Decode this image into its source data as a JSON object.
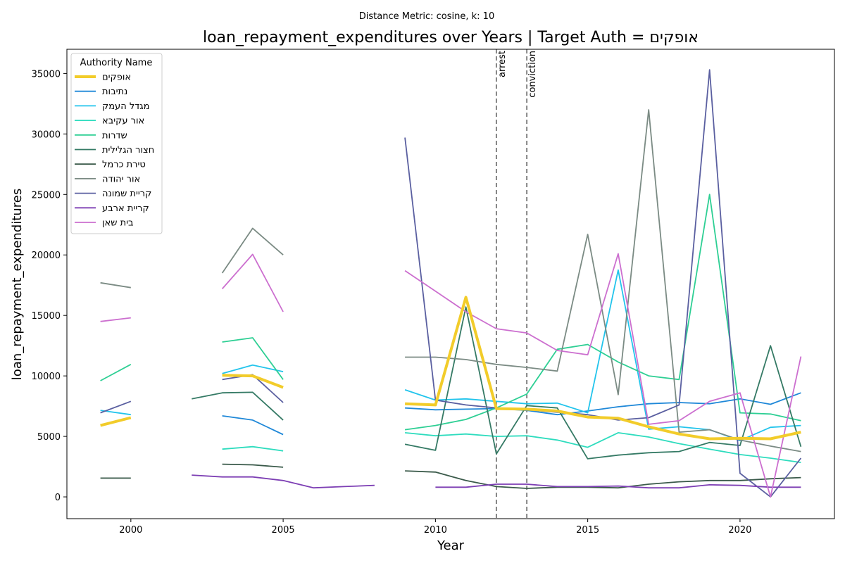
{
  "chart_data": {
    "type": "line",
    "suptitle": "Distance Metric: cosine, k: 10",
    "title": "loan_repayment_expenditures over Years | Target Auth = אופקים",
    "xlabel": "Year",
    "ylabel": "loan_repayment_expenditures",
    "xlim": [
      1997.9,
      2023.1
    ],
    "ylim": [
      -1800,
      37000
    ],
    "xticks": [
      2000,
      2005,
      2010,
      2015,
      2020
    ],
    "yticks": [
      0,
      5000,
      10000,
      15000,
      20000,
      25000,
      30000,
      35000
    ],
    "legend": {
      "title": "Authority Name",
      "placement": "upper-left"
    },
    "annotations": [
      {
        "x": 2012,
        "label": "arrest"
      },
      {
        "x": 2013,
        "label": "conviction"
      }
    ],
    "series": [
      {
        "name": "אופקים",
        "color": "#f2cc2a",
        "width": 4,
        "points": [
          [
            1999,
            5900
          ],
          [
            2000,
            6550
          ],
          [
            null,
            null
          ],
          [
            2003,
            10050
          ],
          [
            2004,
            10000
          ],
          [
            2005,
            9050
          ],
          [
            null,
            null
          ],
          [
            2009,
            7700
          ],
          [
            2010,
            7600
          ],
          [
            2011,
            16500
          ],
          [
            2012,
            7300
          ],
          [
            2013,
            7250
          ],
          [
            2014,
            7100
          ],
          [
            2015,
            6600
          ],
          [
            2016,
            6500
          ],
          [
            2017,
            5800
          ],
          [
            2018,
            5200
          ],
          [
            2019,
            4800
          ],
          [
            2020,
            4850
          ],
          [
            2021,
            4800
          ],
          [
            2022,
            5350
          ]
        ]
      },
      {
        "name": "נתיבות",
        "color": "#1f88d8",
        "width": 1.8,
        "points": [
          [
            2003,
            6700
          ],
          [
            2004,
            6350
          ],
          [
            2005,
            5150
          ],
          [
            null,
            null
          ],
          [
            2009,
            7350
          ],
          [
            2010,
            7200
          ],
          [
            2011,
            7250
          ],
          [
            2012,
            7300
          ],
          [
            2013,
            7150
          ],
          [
            2014,
            6800
          ],
          [
            2015,
            7100
          ],
          [
            2016,
            7450
          ],
          [
            2017,
            7700
          ],
          [
            2018,
            7800
          ],
          [
            2019,
            7700
          ],
          [
            2020,
            8100
          ],
          [
            2021,
            7650
          ],
          [
            2022,
            8600
          ]
        ]
      },
      {
        "name": "מגדל העמק",
        "color": "#22c4ec",
        "width": 1.8,
        "points": [
          [
            1999,
            7150
          ],
          [
            2000,
            6800
          ],
          [
            null,
            null
          ],
          [
            2003,
            10200
          ],
          [
            2004,
            10900
          ],
          [
            2005,
            10350
          ],
          [
            null,
            null
          ],
          [
            2009,
            8850
          ],
          [
            2010,
            8000
          ],
          [
            2011,
            8100
          ],
          [
            2012,
            7900
          ],
          [
            2013,
            7700
          ],
          [
            2014,
            7750
          ],
          [
            2015,
            6950
          ],
          [
            2016,
            18750
          ],
          [
            2017,
            5600
          ],
          [
            2018,
            5800
          ],
          [
            2019,
            5550
          ],
          [
            2020,
            4650
          ],
          [
            2021,
            5750
          ],
          [
            2022,
            5900
          ]
        ]
      },
      {
        "name": "אור עקיבא",
        "color": "#2edcbe",
        "width": 1.8,
        "points": [
          [
            2003,
            3950
          ],
          [
            2004,
            4150
          ],
          [
            2005,
            3800
          ],
          [
            null,
            null
          ],
          [
            2009,
            5300
          ],
          [
            2010,
            5050
          ],
          [
            2011,
            5200
          ],
          [
            2012,
            5000
          ],
          [
            2013,
            5050
          ],
          [
            2014,
            4700
          ],
          [
            2015,
            4100
          ],
          [
            2016,
            5300
          ],
          [
            2017,
            4950
          ],
          [
            2018,
            4400
          ],
          [
            2019,
            3950
          ],
          [
            2020,
            3500
          ],
          [
            2021,
            3200
          ],
          [
            2022,
            2850
          ]
        ]
      },
      {
        "name": "שדרות",
        "color": "#2ecf94",
        "width": 1.8,
        "points": [
          [
            1999,
            9600
          ],
          [
            2000,
            10950
          ],
          [
            null,
            null
          ],
          [
            2003,
            12800
          ],
          [
            2004,
            13150
          ],
          [
            2005,
            9700
          ],
          [
            null,
            null
          ],
          [
            2009,
            5550
          ],
          [
            2010,
            5900
          ],
          [
            2011,
            6400
          ],
          [
            2012,
            7350
          ],
          [
            2013,
            8500
          ],
          [
            2014,
            12200
          ],
          [
            2015,
            12600
          ],
          [
            2016,
            11150
          ],
          [
            2017,
            10000
          ],
          [
            2018,
            9700
          ],
          [
            2019,
            25000
          ],
          [
            2020,
            6950
          ],
          [
            2021,
            6850
          ],
          [
            2022,
            6300
          ]
        ]
      },
      {
        "name": "חצור הגלילית",
        "color": "#357a65",
        "width": 1.8,
        "points": [
          [
            2002,
            8100
          ],
          [
            2003,
            8600
          ],
          [
            2004,
            8650
          ],
          [
            2005,
            6350
          ],
          [
            null,
            null
          ],
          [
            2009,
            4350
          ],
          [
            2010,
            3850
          ],
          [
            2011,
            15700
          ],
          [
            2012,
            3550
          ],
          [
            2013,
            7550
          ],
          [
            2014,
            7350
          ],
          [
            2015,
            3150
          ],
          [
            2016,
            3450
          ],
          [
            2017,
            3650
          ],
          [
            2018,
            3750
          ],
          [
            2019,
            4500
          ],
          [
            2020,
            4250
          ],
          [
            2021,
            12500
          ],
          [
            2022,
            4150
          ]
        ]
      },
      {
        "name": "טירת כרמל",
        "color": "#3a5a4a",
        "width": 1.8,
        "points": [
          [
            1999,
            1550
          ],
          [
            2000,
            1550
          ],
          [
            null,
            null
          ],
          [
            2003,
            2700
          ],
          [
            2004,
            2650
          ],
          [
            2005,
            2450
          ],
          [
            null,
            null
          ],
          [
            2009,
            2150
          ],
          [
            2010,
            2050
          ],
          [
            2011,
            1350
          ],
          [
            2012,
            850
          ],
          [
            2013,
            700
          ],
          [
            2014,
            800
          ],
          [
            2015,
            800
          ],
          [
            2016,
            750
          ],
          [
            2017,
            1050
          ],
          [
            2018,
            1250
          ],
          [
            2019,
            1350
          ],
          [
            2020,
            1350
          ],
          [
            2021,
            1500
          ],
          [
            2022,
            1600
          ]
        ]
      },
      {
        "name": "אור יהודה",
        "color": "#7b8b84",
        "width": 1.8,
        "points": [
          [
            1999,
            17700
          ],
          [
            2000,
            17300
          ],
          [
            null,
            null
          ],
          [
            2003,
            18500
          ],
          [
            2004,
            22200
          ],
          [
            2005,
            20000
          ],
          [
            null,
            null
          ],
          [
            2009,
            11550
          ],
          [
            2010,
            11550
          ],
          [
            2011,
            11350
          ],
          [
            2012,
            10950
          ],
          [
            2013,
            10700
          ],
          [
            2014,
            10400
          ],
          [
            2015,
            21700
          ],
          [
            2016,
            8450
          ],
          [
            2017,
            32000
          ],
          [
            2018,
            5350
          ],
          [
            2019,
            5550
          ],
          [
            2020,
            4700
          ],
          [
            2021,
            4200
          ],
          [
            2022,
            3750
          ]
        ]
      },
      {
        "name": "קריית שמונה",
        "color": "#5a5fa0",
        "width": 1.8,
        "points": [
          [
            1999,
            6950
          ],
          [
            2000,
            7900
          ],
          [
            null,
            null
          ],
          [
            2003,
            9700
          ],
          [
            2004,
            10100
          ],
          [
            2005,
            7800
          ],
          [
            null,
            null
          ],
          [
            2009,
            29700
          ],
          [
            2010,
            8000
          ],
          [
            2011,
            7600
          ],
          [
            2012,
            7350
          ],
          [
            2013,
            7200
          ],
          [
            2014,
            7000
          ],
          [
            2015,
            6800
          ],
          [
            2016,
            6350
          ],
          [
            2017,
            6550
          ],
          [
            2018,
            7600
          ],
          [
            2019,
            35300
          ],
          [
            2020,
            1950
          ],
          [
            2021,
            0
          ],
          [
            2022,
            3200
          ]
        ]
      },
      {
        "name": "קריית ארבע",
        "color": "#7d3fb4",
        "width": 1.8,
        "points": [
          [
            2002,
            1800
          ],
          [
            2003,
            1650
          ],
          [
            2004,
            1650
          ],
          [
            2005,
            1350
          ],
          [
            2006,
            750
          ],
          [
            2007,
            850
          ],
          [
            2008,
            950
          ],
          [
            null,
            null
          ],
          [
            2010,
            800
          ],
          [
            2011,
            800
          ],
          [
            2012,
            1050
          ],
          [
            2013,
            1050
          ],
          [
            2014,
            850
          ],
          [
            2015,
            850
          ],
          [
            2016,
            900
          ],
          [
            2017,
            750
          ],
          [
            2018,
            750
          ],
          [
            2019,
            1000
          ],
          [
            2020,
            950
          ],
          [
            2021,
            800
          ],
          [
            2022,
            800
          ]
        ]
      },
      {
        "name": "בית שאן",
        "color": "#cc6fcf",
        "width": 1.8,
        "points": [
          [
            1999,
            14500
          ],
          [
            2000,
            14800
          ],
          [
            null,
            null
          ],
          [
            2003,
            17200
          ],
          [
            2004,
            20050
          ],
          [
            2005,
            15300
          ],
          [
            null,
            null
          ],
          [
            2009,
            18700
          ],
          [
            2010,
            17000
          ],
          [
            2011,
            15300
          ],
          [
            2012,
            13900
          ],
          [
            2013,
            13550
          ],
          [
            2014,
            12100
          ],
          [
            2015,
            11750
          ],
          [
            2016,
            20100
          ],
          [
            2017,
            6000
          ],
          [
            2018,
            6300
          ],
          [
            2019,
            7900
          ],
          [
            2020,
            8600
          ],
          [
            2021,
            0
          ],
          [
            2022,
            11600
          ]
        ]
      }
    ]
  }
}
